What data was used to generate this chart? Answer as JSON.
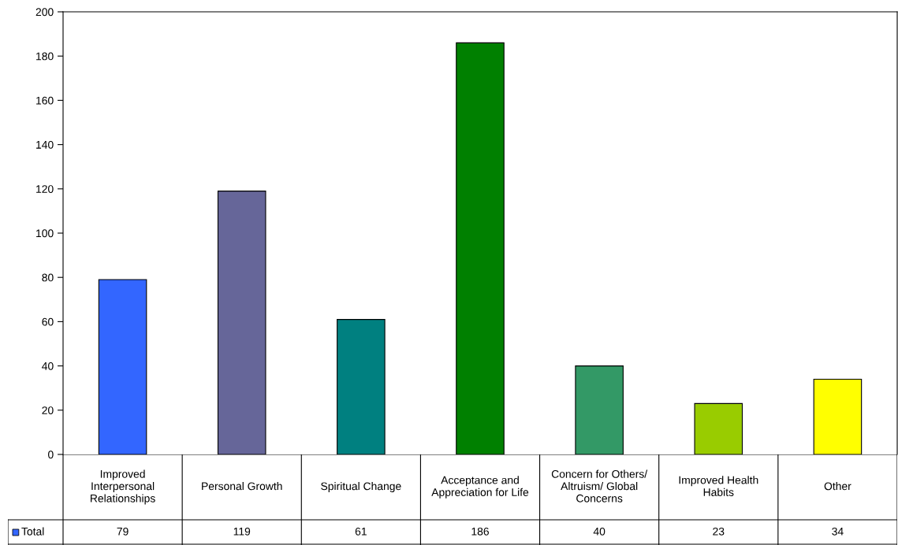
{
  "chart_data": {
    "type": "bar",
    "categories": [
      "Improved Interpersonal Relationships",
      "Personal Growth",
      "Spiritual Change",
      "Acceptance and Appreciation for Life",
      "Concern for Others/Altruism/ Global Concerns",
      "Improved Health Habits",
      "Other"
    ],
    "series": [
      {
        "name": "Total",
        "color": "#3366ff",
        "colors": [
          "#3366ff",
          "#666699",
          "#008080",
          "#008000",
          "#339966",
          "#99cc00",
          "#ffff00"
        ],
        "values": [
          79,
          119,
          61,
          186,
          40,
          23,
          34
        ]
      }
    ],
    "ylim": [
      0,
      200
    ],
    "yticks": [
      0,
      20,
      40,
      60,
      80,
      100,
      120,
      140,
      160,
      180,
      200
    ],
    "grid": false,
    "legend": "bottom left",
    "data_labels": true
  }
}
